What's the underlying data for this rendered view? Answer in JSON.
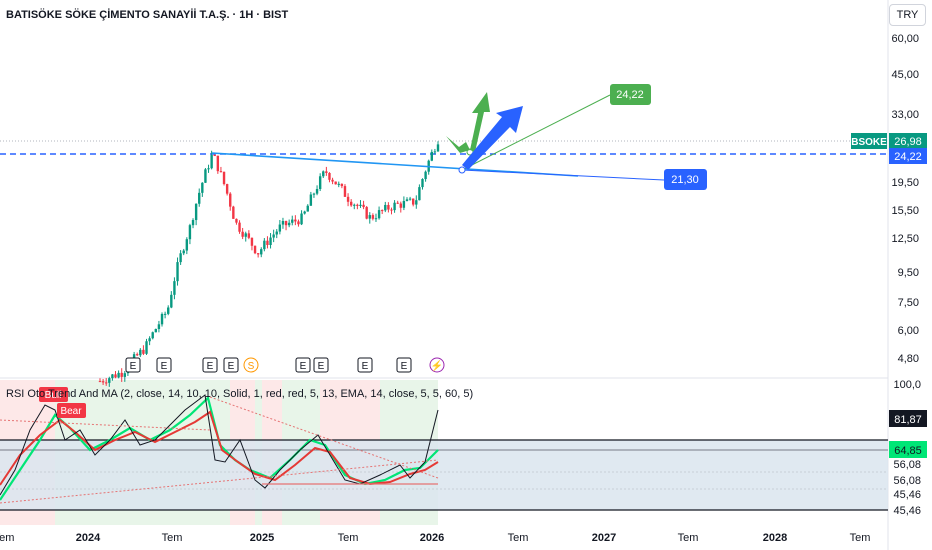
{
  "header": {
    "title": "BATISÖKE SÖKE ÇİMENTO SANAYİİ T.A.Ş. · 1H · BIST",
    "currency": "TRY"
  },
  "price_axis": {
    "ticks": [
      "60,00",
      "45,00",
      "33,00",
      "19,50",
      "15,50",
      "12,50",
      "9,50",
      "7,50",
      "6,00",
      "4,80"
    ],
    "symbol_tag": "BSOKE",
    "last_price": "26,98",
    "level_price": "24,22"
  },
  "chart_labels": {
    "target_green": "24,22",
    "target_blue": "21,30"
  },
  "events": {
    "earnings": [
      "E",
      "E",
      "E",
      "E",
      "E",
      "E",
      "E",
      "E"
    ],
    "dividend": "S",
    "split": "⚡"
  },
  "indicator": {
    "legend": "RSI Oto Trend And MA (2, close, 14, 10, 10, Solid, 1, red, red, 5, 13, EMA, 14, close, 5, 5, 60, 5)",
    "bull_label": "Bull",
    "bear_label": "Bear",
    "axis_ticks": [
      "100,0",
      "56,08",
      "56,08",
      "45,46",
      "45,46"
    ],
    "value_dark": "81,87",
    "value_green": "64,85"
  },
  "time_axis": [
    "Tem",
    "2024",
    "Tem",
    "2025",
    "Tem",
    "2026",
    "Tem",
    "2027",
    "Tem",
    "2028",
    "Tem"
  ],
  "colors": {
    "up": "#089981",
    "down": "#f23645",
    "blue": "#2962ff",
    "green": "#4caf50",
    "rsi_fast": "#00e676",
    "rsi_slow": "#e53935"
  },
  "chart_data": {
    "type": "line",
    "x": [
      "2023-07",
      "2023-10",
      "2024-01",
      "2024-04",
      "2024-07",
      "2024-09",
      "2024-10",
      "2024-12",
      "2025-01",
      "2025-04",
      "2025-07",
      "2025-08",
      "2025-09",
      "2025-11",
      "2025-12",
      "2026-01"
    ],
    "series": [
      {
        "values": [
          4.0,
          4.3,
          5.2,
          7.0,
          13.5,
          24.0,
          14.0,
          11.0,
          13.5,
          14.5,
          21.0,
          17.0,
          14.5,
          16.0,
          16.5,
          26.98
        ]
      }
    ],
    "ylim": [
      4.5,
      60
    ]
  }
}
